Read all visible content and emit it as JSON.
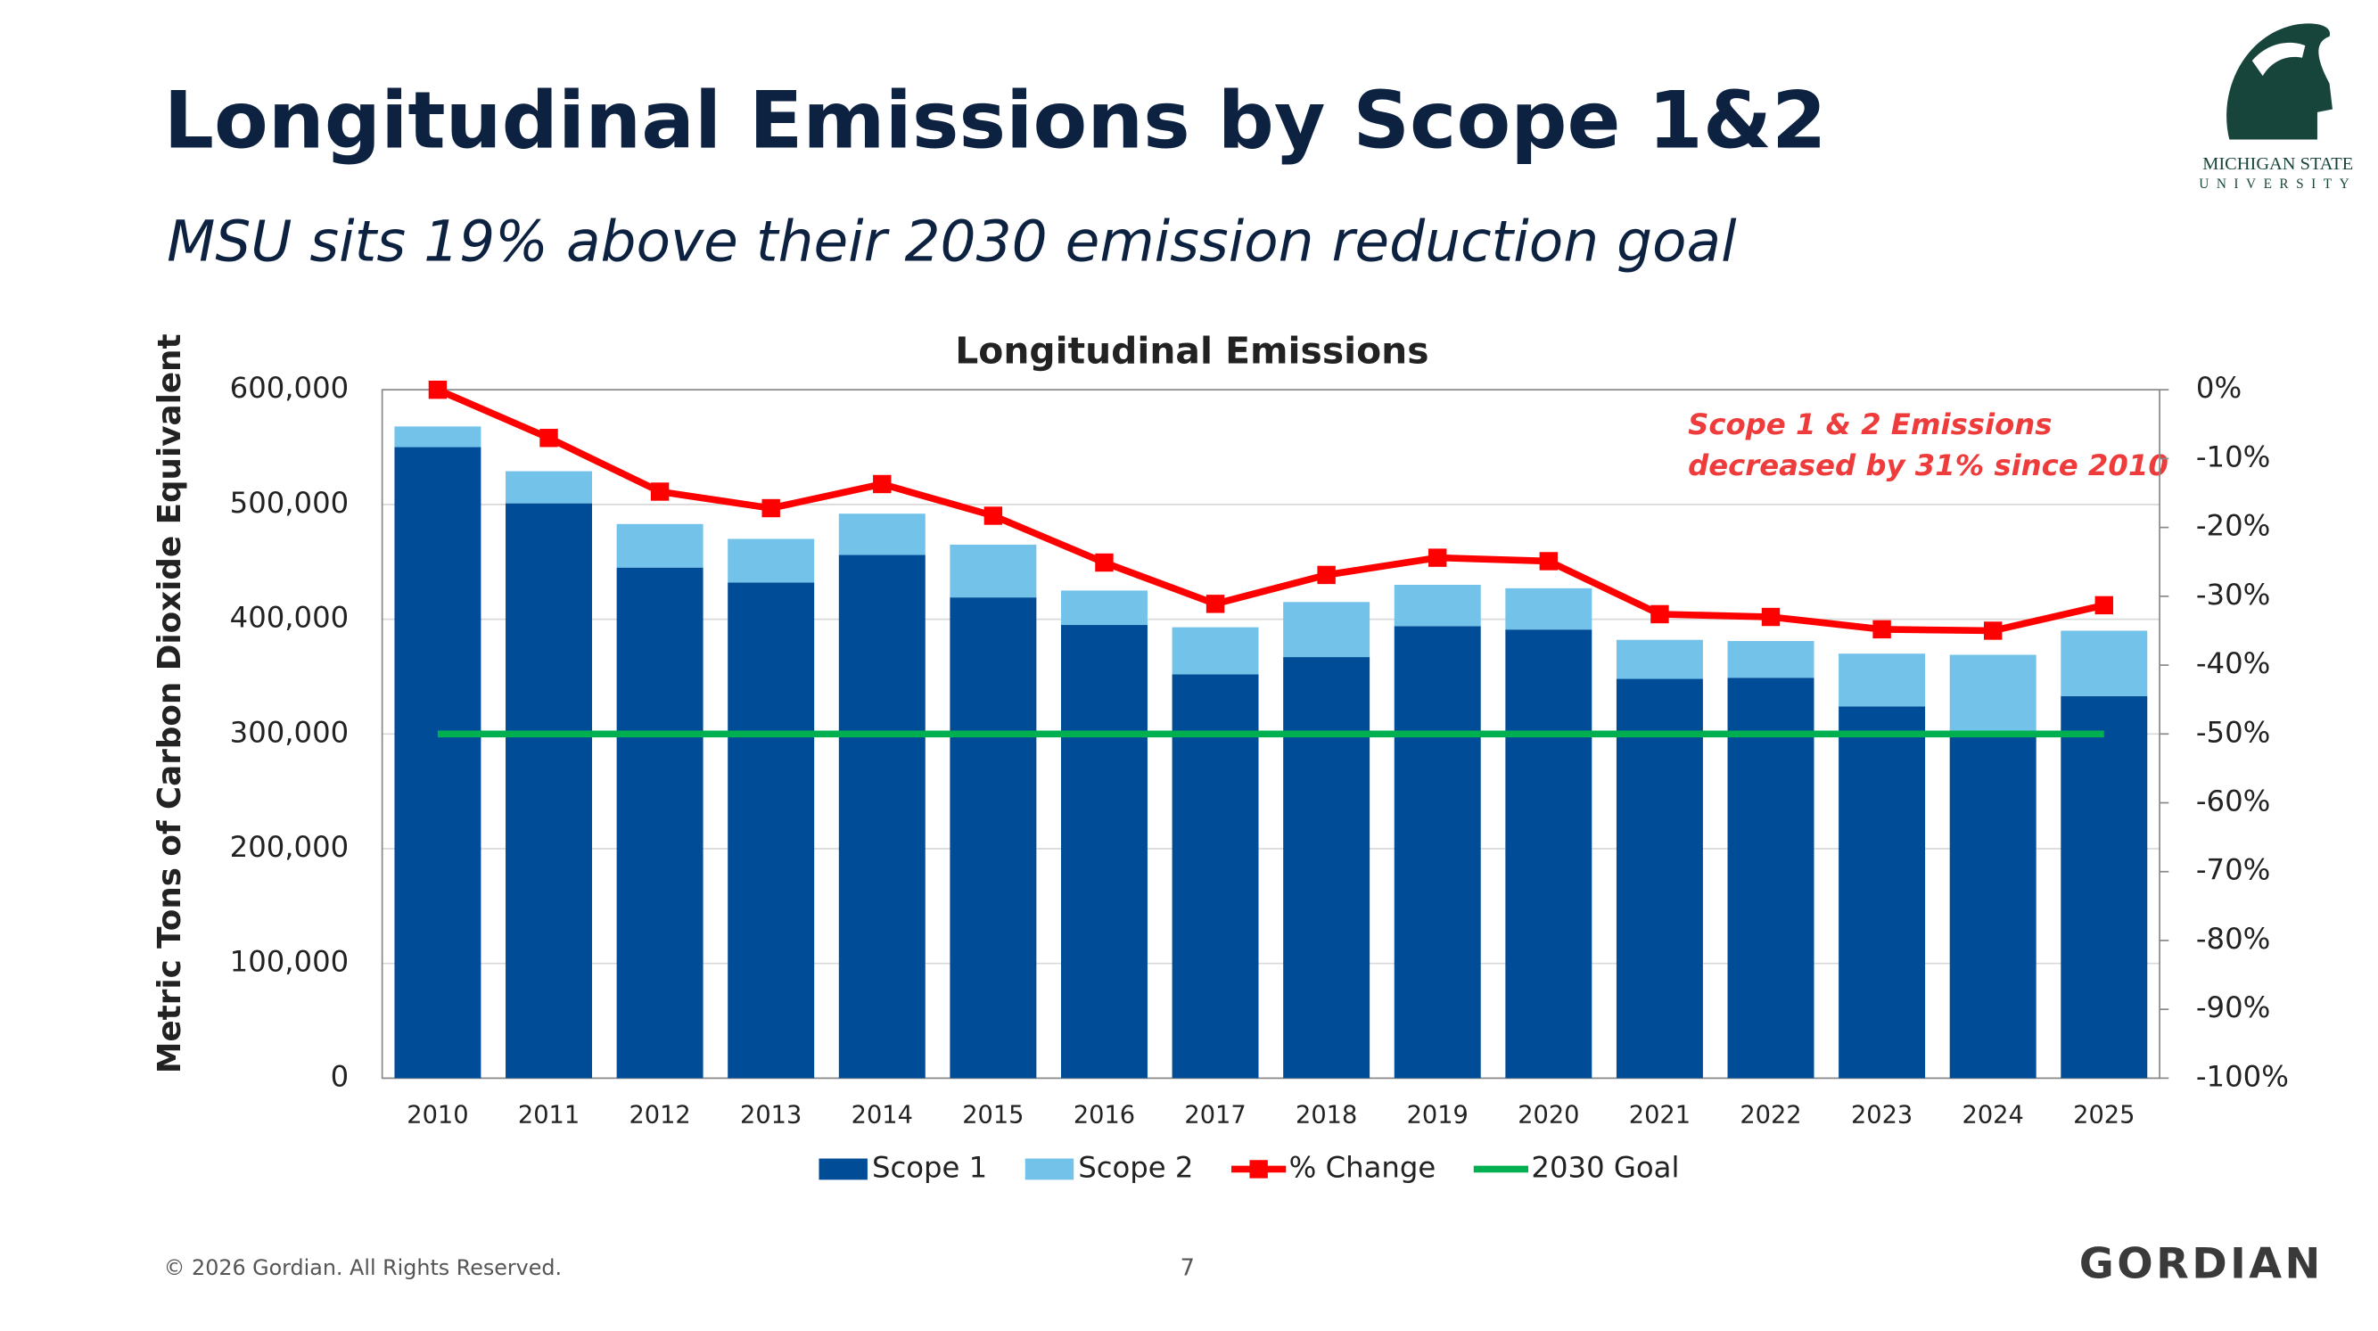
{
  "header": {
    "title": "Longitudinal Emissions by Scope 1&2",
    "subtitle": "MSU sits 19% above their 2030 emission reduction goal",
    "logo_line1": "MICHIGAN STATE",
    "logo_line2": "UNIVERSITY"
  },
  "chart_data": {
    "type": "bar",
    "title": "Longitudinal Emissions",
    "y_label": "Metric Tons of Carbon Dioxide Equivalent",
    "annotation": [
      "Scope 1 & 2 Emissions",
      "decreased by 31% since 2010"
    ],
    "categories": [
      "2010",
      "2011",
      "2012",
      "2013",
      "2014",
      "2015",
      "2016",
      "2017",
      "2018",
      "2019",
      "2020",
      "2021",
      "2022",
      "2023",
      "2024",
      "2025"
    ],
    "series": [
      {
        "name": "Scope 1",
        "type": "bar",
        "color": "#004c97",
        "values": [
          550000,
          501000,
          445000,
          432000,
          456000,
          419000,
          395000,
          352000,
          367000,
          394000,
          391000,
          348000,
          349000,
          324000,
          300000,
          333000
        ]
      },
      {
        "name": "Scope 2",
        "type": "bar",
        "color": "#73c2ea",
        "values": [
          18000,
          28000,
          38000,
          38000,
          36000,
          46000,
          30000,
          41000,
          48000,
          36000,
          36000,
          34000,
          32000,
          46000,
          69000,
          57000
        ]
      },
      {
        "name": "% Change",
        "type": "line",
        "axis": "y2",
        "marker": "square",
        "color": "#ff0000",
        "values": [
          0,
          -7,
          -14.8,
          -17.2,
          -13.7,
          -18.3,
          -25.1,
          -31.1,
          -26.9,
          -24.4,
          -24.9,
          -32.6,
          -33,
          -34.8,
          -35,
          -31.3
        ]
      },
      {
        "name": "2030 Goal",
        "type": "line",
        "color": "#00b050",
        "values": [
          300000,
          300000,
          300000,
          300000,
          300000,
          300000,
          300000,
          300000,
          300000,
          300000,
          300000,
          300000,
          300000,
          300000,
          300000,
          300000
        ]
      }
    ],
    "stacked": true,
    "grid": true,
    "ylim": [
      0,
      600000
    ],
    "yticks": [
      0,
      {
        "value": 100000,
        "label": "100,000"
      },
      {
        "value": 200000,
        "label": "200,000"
      },
      {
        "value": 300000,
        "label": "300,000"
      },
      {
        "value": 400000,
        "label": "400,000"
      },
      {
        "value": 500000,
        "label": "500,000"
      },
      {
        "value": 600000,
        "label": "600,000"
      }
    ],
    "y2lim": [
      -100,
      0
    ],
    "y2ticks": [
      {
        "value": -100,
        "label": "-100%"
      },
      {
        "value": -90,
        "label": "-90%"
      },
      {
        "value": -80,
        "label": "-80%"
      },
      {
        "value": -70,
        "label": "-70%"
      },
      {
        "value": -60,
        "label": "-60%"
      },
      {
        "value": -50,
        "label": "-50%"
      },
      {
        "value": -40,
        "label": "-40%"
      },
      {
        "value": -30,
        "label": "-30%"
      },
      {
        "value": -20,
        "label": "-20%"
      },
      {
        "value": -10,
        "label": "-10%"
      },
      {
        "value": 0,
        "label": "0%"
      }
    ],
    "legend": "bottom"
  },
  "footer": {
    "copyright": "© 2026 Gordian. All Rights Reserved.",
    "page": "7",
    "brand": "GORDIAN"
  }
}
